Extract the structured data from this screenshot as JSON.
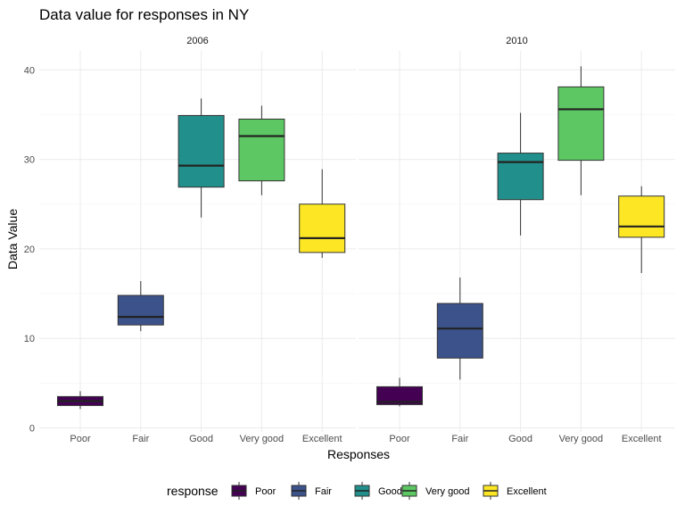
{
  "chart_data": {
    "type": "boxplot",
    "title": "Data value for responses in NY",
    "xlabel": "Responses",
    "ylabel": "Data Value",
    "ylim": [
      0,
      42
    ],
    "yticks": [
      0,
      10,
      20,
      30,
      40
    ],
    "grid": true,
    "legend": {
      "title": "response",
      "position": "bottom",
      "entries": [
        "Poor",
        "Fair",
        "Good",
        "Very good",
        "Excellent"
      ]
    },
    "colors": {
      "Poor": "#440154",
      "Fair": "#3B528B",
      "Good": "#21908C",
      "Very good": "#5DC863",
      "Excellent": "#FDE725"
    },
    "categories": [
      "Poor",
      "Fair",
      "Good",
      "Very good",
      "Excellent"
    ],
    "panels": [
      {
        "label": "2006",
        "boxes": [
          {
            "category": "Poor",
            "min": 2.1,
            "q1": 2.5,
            "median": 3.0,
            "q3": 3.5,
            "max": 4.1
          },
          {
            "category": "Fair",
            "min": 10.8,
            "q1": 11.5,
            "median": 12.4,
            "q3": 14.8,
            "max": 16.4
          },
          {
            "category": "Good",
            "min": 23.5,
            "q1": 26.9,
            "median": 29.3,
            "q3": 34.9,
            "max": 36.8
          },
          {
            "category": "Very good",
            "min": 26.0,
            "q1": 27.6,
            "median": 32.6,
            "q3": 34.5,
            "max": 36.0
          },
          {
            "category": "Excellent",
            "min": 19.0,
            "q1": 19.6,
            "median": 21.2,
            "q3": 25.0,
            "max": 28.9
          }
        ]
      },
      {
        "label": "2010",
        "boxes": [
          {
            "category": "Poor",
            "min": 2.4,
            "q1": 2.6,
            "median": 2.9,
            "q3": 4.6,
            "max": 5.6
          },
          {
            "category": "Fair",
            "min": 5.4,
            "q1": 7.8,
            "median": 11.1,
            "q3": 13.9,
            "max": 16.8
          },
          {
            "category": "Good",
            "min": 21.5,
            "q1": 25.5,
            "median": 29.7,
            "q3": 30.7,
            "max": 35.2
          },
          {
            "category": "Very good",
            "min": 26.0,
            "q1": 29.9,
            "median": 35.6,
            "q3": 38.1,
            "max": 40.4
          },
          {
            "category": "Excellent",
            "min": 17.3,
            "q1": 21.3,
            "median": 22.5,
            "q3": 25.9,
            "max": 27.0
          }
        ]
      }
    ]
  }
}
